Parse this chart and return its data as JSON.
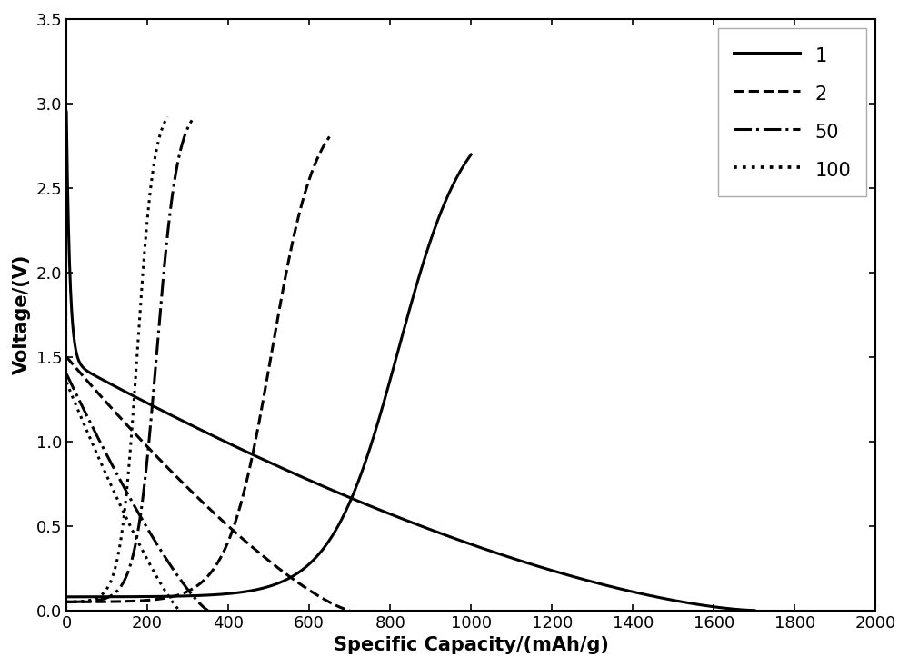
{
  "title": "",
  "xlabel": "Specific Capacity/(mAh/g)",
  "ylabel": "Voltage/(V)",
  "xlim": [
    0,
    2000
  ],
  "ylim": [
    0,
    3.5
  ],
  "xticks": [
    0,
    200,
    400,
    600,
    800,
    1000,
    1200,
    1400,
    1600,
    1800,
    2000
  ],
  "yticks": [
    0.0,
    0.5,
    1.0,
    1.5,
    2.0,
    2.5,
    3.0,
    3.5
  ],
  "legend_labels": [
    "1",
    "2",
    "50",
    "100"
  ],
  "legend_linestyles": [
    "-",
    "--",
    "-.",
    ":"
  ],
  "line_color": "#000000",
  "line_width": 2.2,
  "background_color": "#ffffff",
  "xlabel_fontsize": 15,
  "ylabel_fontsize": 15,
  "tick_fontsize": 13,
  "legend_fontsize": 15,
  "c1_discharge_cap": 1700,
  "c1_charge_cap": 1000,
  "c2_discharge_cap": 700,
  "c2_charge_cap": 650,
  "c50_discharge_cap": 350,
  "c50_charge_cap": 310,
  "c100_discharge_cap": 280,
  "c100_charge_cap": 250
}
